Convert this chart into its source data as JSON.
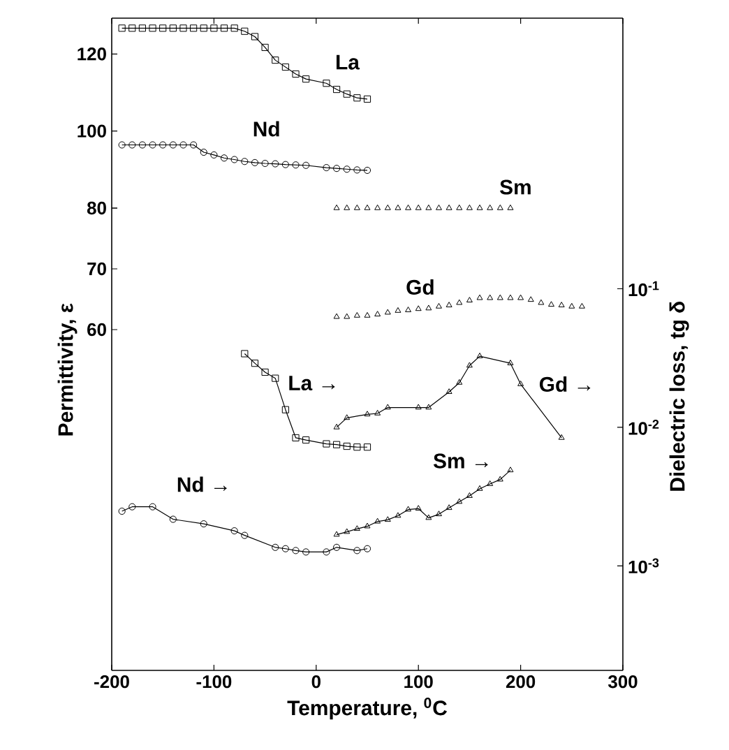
{
  "chart_data": [
    {
      "type": "line",
      "xlim": [
        -200,
        300
      ],
      "xticks": [
        -200,
        -100,
        0,
        100,
        200,
        300
      ],
      "ylim": [
        80,
        129.3
      ],
      "yticks": [
        80,
        100,
        120
      ],
      "tick_labels": "y",
      "series": [
        {
          "name": "La",
          "marker": "square",
          "color": "#000000",
          "x": [
            -190,
            -180,
            -170,
            -160,
            -150,
            -140,
            -130,
            -120,
            -110,
            -100,
            -90,
            -80,
            -70,
            -60,
            -50,
            -40,
            -30,
            -20,
            -10,
            10,
            20,
            30,
            40,
            50
          ],
          "values": [
            126.7,
            126.7,
            126.7,
            126.7,
            126.7,
            126.7,
            126.7,
            126.7,
            126.7,
            126.7,
            126.7,
            126.7,
            125.9,
            124.5,
            121.7,
            118.4,
            116.6,
            114.8,
            113.5,
            112.4,
            110.8,
            109.6,
            108.6,
            108.3
          ]
        },
        {
          "name": "Nd",
          "marker": "circle",
          "color": "#000000",
          "x": [
            -190,
            -180,
            -170,
            -160,
            -150,
            -140,
            -130,
            -120,
            -110,
            -100,
            -90,
            -80,
            -70,
            -60,
            -50,
            -40,
            -30,
            -20,
            -10,
            10,
            20,
            30,
            40,
            50
          ],
          "values": [
            96.4,
            96.4,
            96.4,
            96.4,
            96.4,
            96.4,
            96.4,
            96.4,
            94.5,
            93.8,
            93.0,
            92.6,
            92.1,
            91.8,
            91.6,
            91.5,
            91.3,
            91.2,
            91.1,
            90.5,
            90.3,
            90.1,
            89.9,
            89.8
          ]
        },
        {
          "name": "Sm",
          "type": "scatter",
          "marker": "triangle",
          "color": "#000000",
          "x": [
            20,
            30,
            40,
            50,
            60,
            70,
            80,
            90,
            100,
            110,
            120,
            130,
            140,
            150,
            160,
            170,
            180,
            190
          ],
          "values": [
            80,
            80,
            80,
            80,
            80,
            80,
            80,
            80,
            80,
            80,
            80,
            80,
            80,
            80,
            80,
            80,
            80,
            80
          ]
        }
      ]
    },
    {
      "type": "line",
      "xlabel": "Temperature, $^{0}$C",
      "ylabel": "Permittivity, ε",
      "y2label": "Dielectric loss, tg δ",
      "xlim": [
        -200,
        300
      ],
      "xticks": [
        -200,
        -100,
        0,
        100,
        200,
        300
      ],
      "ylim": [
        3.9,
        80
      ],
      "yticks": [
        60,
        70,
        {
          "value": 80,
          "label": null
        }
      ],
      "y2lim": [
        0.000176,
        8.98
      ],
      "y2ticks": [
        {
          "value": 0.001,
          "label": "10$^{-3}$"
        },
        {
          "value": 0.01,
          "label": "10$^{-2}$"
        },
        {
          "value": 0.1,
          "label": "10$^{-1}$"
        }
      ],
      "log": "y2",
      "series": [
        {
          "name": "Gd",
          "type": "scatter",
          "marker": "triangle",
          "color": "#000000",
          "x": [
            20,
            30,
            40,
            50,
            60,
            70,
            80,
            90,
            100,
            110,
            120,
            130,
            140,
            150,
            160,
            170,
            180,
            190,
            200,
            210,
            220,
            230,
            240,
            250,
            260
          ],
          "values": [
            62.1,
            62.1,
            62.3,
            62.3,
            62.5,
            62.8,
            63.1,
            63.2,
            63.4,
            63.5,
            63.8,
            64.0,
            64.4,
            64.8,
            65.2,
            65.2,
            65.2,
            65.2,
            65.2,
            64.9,
            64.4,
            64.1,
            64.0,
            63.8,
            63.8
          ]
        },
        {
          "name": "La →",
          "axis": "y2",
          "marker": "square",
          "color": "#000000",
          "x": [
            -70,
            -60,
            -50,
            -40,
            -30,
            -20,
            -10,
            10,
            20,
            30,
            40,
            50
          ],
          "values": [
            0.034,
            0.029,
            0.025,
            0.0226,
            0.0134,
            0.0084,
            0.0081,
            0.0076,
            0.0075,
            0.0073,
            0.0072,
            0.0072
          ]
        },
        {
          "name": "Gd →",
          "axis": "y2",
          "marker": "triangle",
          "color": "#000000",
          "x": [
            20,
            30,
            50,
            60,
            70,
            100,
            110,
            130,
            140,
            150,
            160,
            190,
            200,
            240
          ],
          "values": [
            0.01,
            0.0117,
            0.0124,
            0.0126,
            0.0139,
            0.0139,
            0.0139,
            0.018,
            0.021,
            0.0279,
            0.0326,
            0.029,
            0.0205,
            0.0084
          ]
        },
        {
          "name": "Nd →",
          "axis": "y2",
          "marker": "circle",
          "color": "#000000",
          "x": [
            -190,
            -180,
            -160,
            -140,
            -110,
            -80,
            -70,
            -40,
            -30,
            -20,
            -10,
            10,
            20,
            40,
            50
          ],
          "values": [
            0.00248,
            0.00267,
            0.00267,
            0.00217,
            0.00201,
            0.00179,
            0.00166,
            0.00136,
            0.00133,
            0.00129,
            0.00126,
            0.00126,
            0.00136,
            0.00129,
            0.00133
          ]
        },
        {
          "name": "Sm →",
          "axis": "y2",
          "marker": "triangle",
          "color": "#000000",
          "x": [
            20,
            30,
            40,
            50,
            60,
            70,
            80,
            90,
            100,
            110,
            120,
            130,
            140,
            150,
            160,
            170,
            180,
            190
          ],
          "values": [
            0.00168,
            0.00176,
            0.00185,
            0.00193,
            0.00209,
            0.00215,
            0.0023,
            0.00255,
            0.00259,
            0.00222,
            0.00236,
            0.00262,
            0.0029,
            0.0032,
            0.0036,
            0.0039,
            0.0042,
            0.0049
          ]
        }
      ]
    }
  ]
}
